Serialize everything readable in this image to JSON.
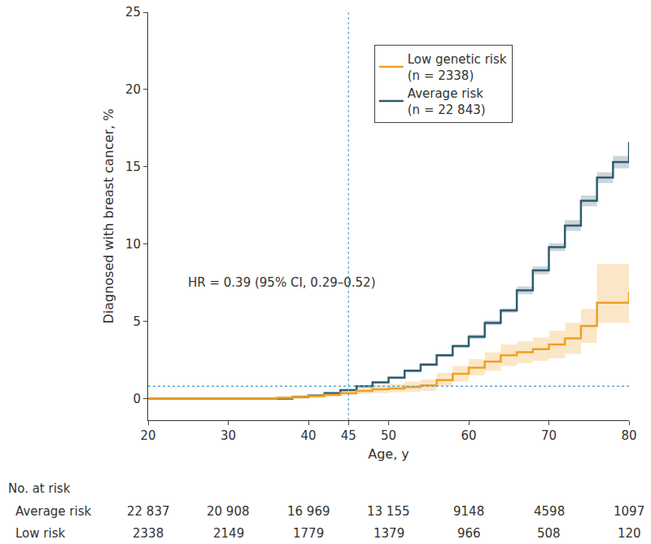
{
  "chart_data": {
    "type": "line",
    "line_style": "step",
    "x_label": "Age, y",
    "y_label": "Diagnosed with breast cancer, %",
    "xlim": [
      20,
      80
    ],
    "xticks": [
      20,
      30,
      40,
      45,
      50,
      60,
      70,
      80
    ],
    "ylim": [
      -1.4,
      25
    ],
    "yticks": [
      0,
      5,
      10,
      15,
      20,
      25
    ],
    "grid": false,
    "legend": "top right",
    "x": [
      20,
      28,
      36,
      38,
      40,
      42,
      44,
      46,
      48,
      50,
      52,
      54,
      56,
      58,
      60,
      62,
      64,
      66,
      68,
      70,
      72,
      74,
      76,
      78,
      80
    ],
    "series": [
      {
        "name": "Average risk (n = 22 843)",
        "color": "#2f5b70",
        "values": [
          0,
          0,
          0,
          0.1,
          0.2,
          0.35,
          0.55,
          0.8,
          1.05,
          1.35,
          1.8,
          2.2,
          2.8,
          3.4,
          4.0,
          4.9,
          5.7,
          7.0,
          8.3,
          9.8,
          11.2,
          12.8,
          14.3,
          15.3,
          16.6
        ],
        "ci_lower": [
          0,
          0,
          0,
          0.05,
          0.15,
          0.3,
          0.5,
          0.75,
          1.0,
          1.3,
          1.7,
          2.1,
          2.7,
          3.3,
          3.85,
          4.75,
          5.55,
          6.75,
          8.05,
          9.55,
          10.85,
          12.45,
          13.95,
          14.9,
          16.15
        ],
        "ci_upper": [
          0,
          0,
          0,
          0.15,
          0.25,
          0.4,
          0.6,
          0.85,
          1.1,
          1.4,
          1.9,
          2.3,
          2.9,
          3.5,
          4.15,
          5.05,
          5.85,
          7.25,
          8.55,
          10.05,
          11.55,
          13.15,
          14.65,
          15.7,
          17.05
        ]
      },
      {
        "name": "Low genetic risk (n = 2338)",
        "color": "#f0a020",
        "values": [
          0,
          0,
          0.05,
          0.1,
          0.15,
          0.25,
          0.35,
          0.5,
          0.6,
          0.65,
          0.75,
          0.85,
          1.2,
          1.6,
          2.0,
          2.4,
          2.8,
          3.0,
          3.2,
          3.5,
          3.9,
          4.7,
          6.2,
          6.2,
          6.9
        ],
        "ci_lower": [
          0,
          0,
          0,
          0,
          0.05,
          0.1,
          0.2,
          0.3,
          0.35,
          0.4,
          0.45,
          0.5,
          0.8,
          1.1,
          1.5,
          1.8,
          2.1,
          2.3,
          2.45,
          2.6,
          2.9,
          3.6,
          4.9,
          4.9,
          5.0
        ],
        "ci_upper": [
          0,
          0,
          0.15,
          0.25,
          0.3,
          0.4,
          0.55,
          0.7,
          0.85,
          0.95,
          1.1,
          1.25,
          1.65,
          2.1,
          2.55,
          3.0,
          3.5,
          3.7,
          3.95,
          4.4,
          4.9,
          5.8,
          8.7,
          8.7,
          8.7
        ]
      }
    ],
    "annotations": [
      {
        "text": "HR = 0.39 (95% CI, 0.29–0.52)",
        "x": 36.7,
        "y": 7.5
      }
    ],
    "reference_lines": [
      {
        "axis": "x",
        "value": 45
      },
      {
        "axis": "y",
        "value": 0.8
      }
    ],
    "at_risk": {
      "title": "No. at risk",
      "x": [
        20,
        30,
        40,
        50,
        60,
        70,
        80
      ],
      "rows": [
        {
          "name": "Average risk",
          "values": [
            22837,
            20908,
            16969,
            13155,
            9148,
            4598,
            1097
          ],
          "value_labels": [
            "22 837",
            "20 908",
            "16 969",
            "13 155",
            "9148",
            "4598",
            "1097"
          ]
        },
        {
          "name": "Low risk",
          "values": [
            2338,
            2149,
            1779,
            1379,
            966,
            508,
            120
          ]
        }
      ]
    }
  }
}
